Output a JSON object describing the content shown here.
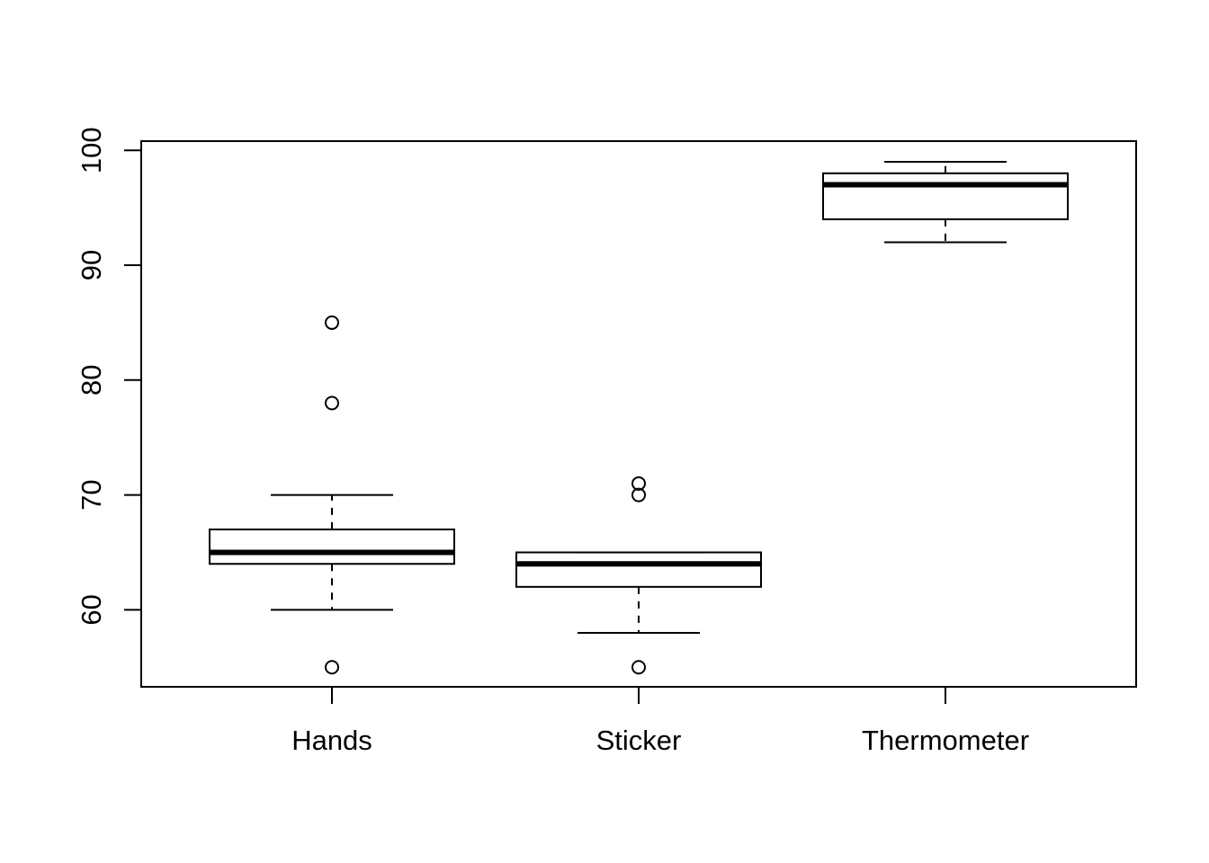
{
  "chart_data": {
    "type": "box",
    "title": "",
    "xlabel": "",
    "ylabel": "",
    "ylim": [
      53.3,
      100.8
    ],
    "yticks": [
      60,
      70,
      80,
      90,
      100
    ],
    "ytick_labels": [
      "60",
      "70",
      "80",
      "90",
      "100"
    ],
    "categories": [
      "Hands",
      "Sticker",
      "Thermometer"
    ],
    "boxes": [
      {
        "name": "Hands",
        "whisker_low": 60,
        "q1": 64,
        "median": 65,
        "q3": 67,
        "whisker_high": 70,
        "outliers": [
          55,
          78,
          85
        ]
      },
      {
        "name": "Sticker",
        "whisker_low": 58,
        "q1": 62,
        "median": 64,
        "q3": 65,
        "whisker_high": 65,
        "outliers": [
          55,
          70,
          71
        ]
      },
      {
        "name": "Thermometer",
        "whisker_low": 92,
        "q1": 94,
        "median": 97,
        "q3": 98,
        "whisker_high": 99,
        "outliers": []
      }
    ],
    "grid": false,
    "legend": "none"
  }
}
